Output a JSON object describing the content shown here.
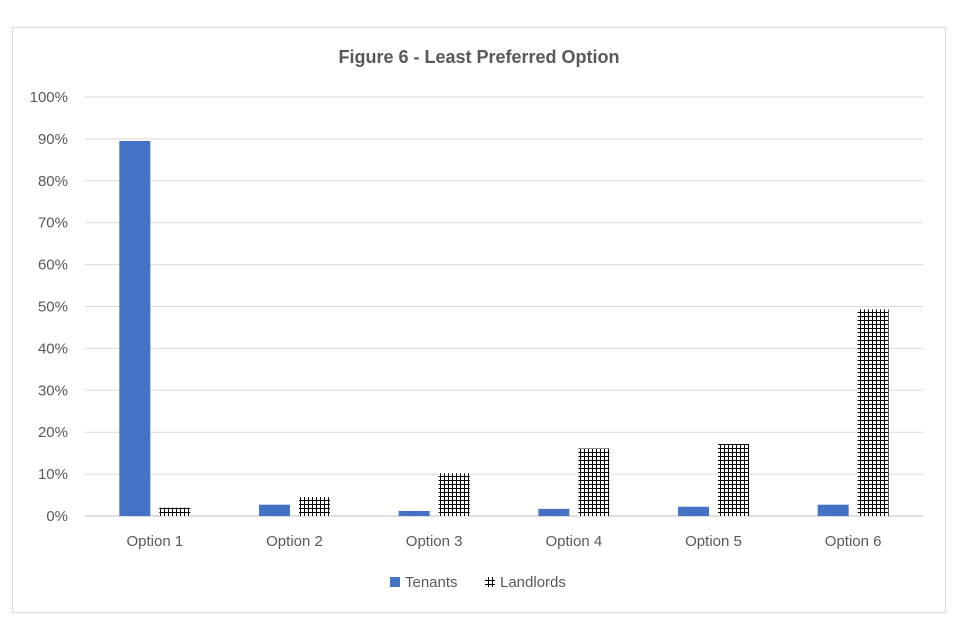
{
  "chart_data": {
    "type": "bar",
    "title": "Figure 6 - Least Preferred Option",
    "categories": [
      "Option 1",
      "Option 2",
      "Option 3",
      "Option 4",
      "Option 5",
      "Option 6"
    ],
    "series": [
      {
        "name": "Tenants",
        "values": [
          89.5,
          2.7,
          1.2,
          1.7,
          2.2,
          2.7
        ],
        "color": "#4472c4",
        "pattern": "solid"
      },
      {
        "name": "Landlords",
        "values": [
          2.0,
          4.5,
          10.2,
          16.1,
          17.2,
          49.3
        ],
        "color": "#000000",
        "pattern": "grid"
      }
    ],
    "ylim": [
      0,
      100
    ],
    "yticks": [
      "0%",
      "10%",
      "20%",
      "30%",
      "40%",
      "50%",
      "60%",
      "70%",
      "80%",
      "90%",
      "100%"
    ],
    "grid": true,
    "legend_position": "bottom"
  }
}
